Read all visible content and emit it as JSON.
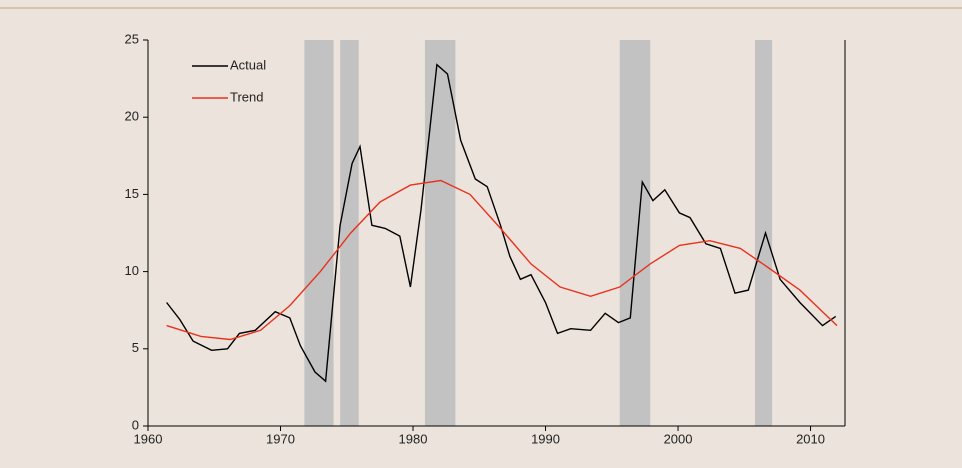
{
  "chart_data": {
    "type": "line",
    "x": [
      1961.4,
      1962.4,
      1963.4,
      1964.8,
      1966.0,
      1966.9,
      1968.1,
      1969.6,
      1970.7,
      1971.5,
      1972.6,
      1973.4,
      1974.5,
      1975.4,
      1976.0,
      1976.9,
      1977.9,
      1979.0,
      1979.8,
      1980.6,
      1981.8,
      1982.6,
      1983.6,
      1984.7,
      1985.6,
      1986.6,
      1987.3,
      1988.1,
      1988.9,
      1990.0,
      1990.9,
      1991.9,
      1993.4,
      1994.5,
      1995.5,
      1996.4,
      1997.3,
      1998.1,
      1999.0,
      2000.1,
      2000.9,
      2002.1,
      2003.2,
      2004.3,
      2005.3,
      2006.6,
      2007.7,
      2009.2,
      2010.9,
      2011.9
    ],
    "series": [
      {
        "name": "Actual",
        "color": "#000000",
        "values": [
          8,
          6.9,
          5.5,
          4.9,
          5,
          6,
          6.2,
          7.4,
          7,
          5.2,
          3.5,
          2.9,
          13,
          17,
          18.1,
          13,
          12.8,
          12.3,
          9,
          14,
          23.4,
          22.8,
          18.5,
          16,
          15.5,
          13,
          11,
          9.5,
          9.8,
          8,
          6,
          6.3,
          6.2,
          7.3,
          6.7,
          7,
          15.8,
          14.6,
          15.3,
          13.8,
          13.5,
          11.8,
          11.5,
          8.6,
          8.8,
          12.5,
          9.5,
          8,
          6.5,
          7.1
        ]
      },
      {
        "name": "Trend",
        "color": "#e8321e",
        "x": [
          1961.4,
          1964.0,
          1966.2,
          1968.5,
          1970.7,
          1973.0,
          1975.3,
          1977.5,
          1979.8,
          1982.1,
          1984.3,
          1986.6,
          1988.9,
          1991.1,
          1993.4,
          1995.6,
          1997.9,
          2000.1,
          2002.4,
          2004.7,
          2006.9,
          2009.2,
          2012.0
        ],
        "values": [
          6.5,
          5.8,
          5.6,
          6.2,
          7.8,
          10,
          12.5,
          14.5,
          15.6,
          15.9,
          15,
          12.8,
          10.5,
          9,
          8.4,
          9,
          10.5,
          11.7,
          12,
          11.5,
          10.2,
          8.8,
          6.5
        ]
      }
    ],
    "shaded_periods": [
      [
        1971.8,
        1974.0
      ],
      [
        1974.5,
        1975.9
      ],
      [
        1980.9,
        1983.2
      ],
      [
        1995.6,
        1997.9
      ],
      [
        2005.8,
        2007.1
      ]
    ],
    "shade_color": "#c2c2c2",
    "xlim": [
      1960,
      2012.6
    ],
    "xticks": [
      1960,
      1970,
      1980,
      1990,
      2000,
      2010
    ],
    "ylim": [
      0,
      25
    ],
    "yticks": [
      0,
      5,
      10,
      15,
      20,
      25
    ],
    "legend": "top-left"
  }
}
